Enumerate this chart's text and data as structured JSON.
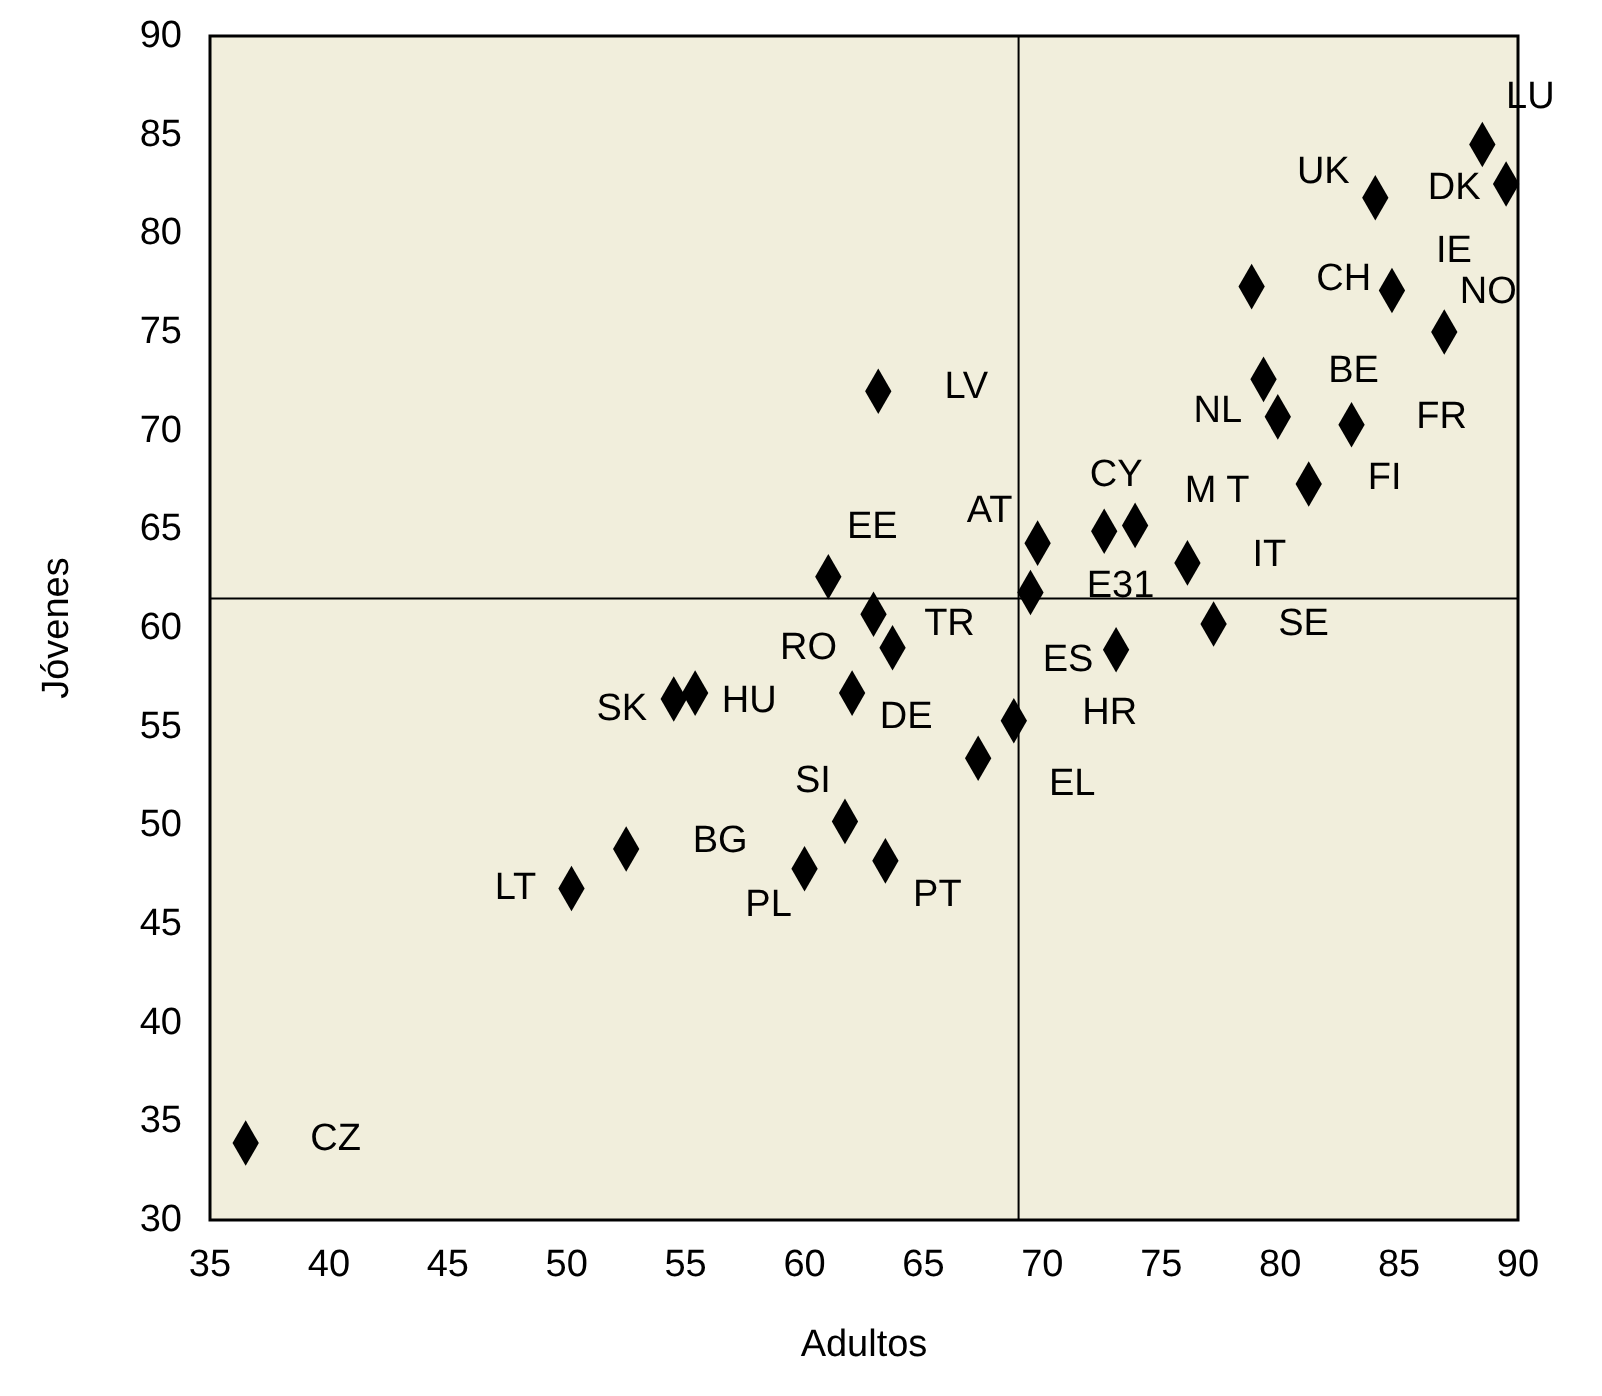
{
  "chart_data": {
    "type": "scatter",
    "xlabel": "Adultos",
    "ylabel": "Jóvenes",
    "xlim": [
      35,
      90
    ],
    "xticks": [
      35,
      40,
      45,
      50,
      55,
      60,
      65,
      70,
      75,
      80,
      85,
      90
    ],
    "ylim": [
      30,
      90
    ],
    "yticks": [
      30,
      35,
      40,
      45,
      50,
      55,
      60,
      65,
      70,
      75,
      80,
      85,
      90
    ],
    "marker": "diamond",
    "series": [
      {
        "color": "#000000",
        "x": [
          88.5,
          84.0,
          89.5,
          78.8,
          84.7,
          86.9,
          79.3,
          79.9,
          83.0,
          81.2,
          63.1,
          72.6,
          73.9,
          69.8,
          76.1,
          61.0,
          69.5,
          62.9,
          63.7,
          77.2,
          73.1,
          54.5,
          55.4,
          62.0,
          68.8,
          67.3,
          61.7,
          52.5,
          60.0,
          63.4,
          50.2,
          36.5
        ],
        "values": [
          84.5,
          81.8,
          82.5,
          77.3,
          77.1,
          75.0,
          72.6,
          70.7,
          70.3,
          67.3,
          72.0,
          64.9,
          65.2,
          64.3,
          63.3,
          62.6,
          61.8,
          60.7,
          59.0,
          60.2,
          58.9,
          56.4,
          56.7,
          56.7,
          55.3,
          53.4,
          50.2,
          48.8,
          47.8,
          48.2,
          46.8,
          33.9
        ]
      }
    ],
    "ref_lines": [
      {
        "axis": "x",
        "value": 69
      },
      {
        "axis": "y",
        "value": 61.5
      }
    ],
    "annotations": [
      {
        "text": "LU",
        "x": 88.5,
        "y": 84.5
      },
      {
        "text": "UK",
        "x": 84.0,
        "y": 81.8
      },
      {
        "text": "DK",
        "x": 89.5,
        "y": 82.5
      },
      {
        "text": "CH",
        "x": 78.8,
        "y": 77.3
      },
      {
        "text": "IE",
        "x": 84.7,
        "y": 77.1
      },
      {
        "text": "NO",
        "x": 86.9,
        "y": 75.0
      },
      {
        "text": "BE",
        "x": 79.3,
        "y": 72.6
      },
      {
        "text": "NL",
        "x": 79.9,
        "y": 70.7
      },
      {
        "text": "FR",
        "x": 83.0,
        "y": 70.3
      },
      {
        "text": "FI",
        "x": 81.2,
        "y": 67.3
      },
      {
        "text": "LV",
        "x": 63.1,
        "y": 72.0
      },
      {
        "text": "CY",
        "x": 72.6,
        "y": 64.9
      },
      {
        "text": "M T",
        "x": 73.9,
        "y": 65.2
      },
      {
        "text": "AT",
        "x": 69.8,
        "y": 64.3
      },
      {
        "text": "IT",
        "x": 76.1,
        "y": 63.3
      },
      {
        "text": "EE",
        "x": 61.0,
        "y": 62.6
      },
      {
        "text": "E31",
        "x": 69.5,
        "y": 61.8
      },
      {
        "text": "TR",
        "x": 62.9,
        "y": 60.7
      },
      {
        "text": "RO",
        "x": 63.7,
        "y": 59.0
      },
      {
        "text": "SE",
        "x": 77.2,
        "y": 60.2
      },
      {
        "text": "ES",
        "x": 73.1,
        "y": 58.9
      },
      {
        "text": "SK",
        "x": 54.5,
        "y": 56.4
      },
      {
        "text": "HU",
        "x": 55.4,
        "y": 56.7
      },
      {
        "text": "DE",
        "x": 62.0,
        "y": 56.7
      },
      {
        "text": "HR",
        "x": 68.8,
        "y": 55.3
      },
      {
        "text": "EL",
        "x": 67.3,
        "y": 53.4
      },
      {
        "text": "SI",
        "x": 61.7,
        "y": 50.2
      },
      {
        "text": "BG",
        "x": 52.5,
        "y": 48.8
      },
      {
        "text": "PL",
        "x": 60.0,
        "y": 47.8
      },
      {
        "text": "PT",
        "x": 63.4,
        "y": 48.2
      },
      {
        "text": "LT",
        "x": 50.2,
        "y": 46.8
      },
      {
        "text": "CZ",
        "x": 36.5,
        "y": 33.9
      }
    ]
  }
}
